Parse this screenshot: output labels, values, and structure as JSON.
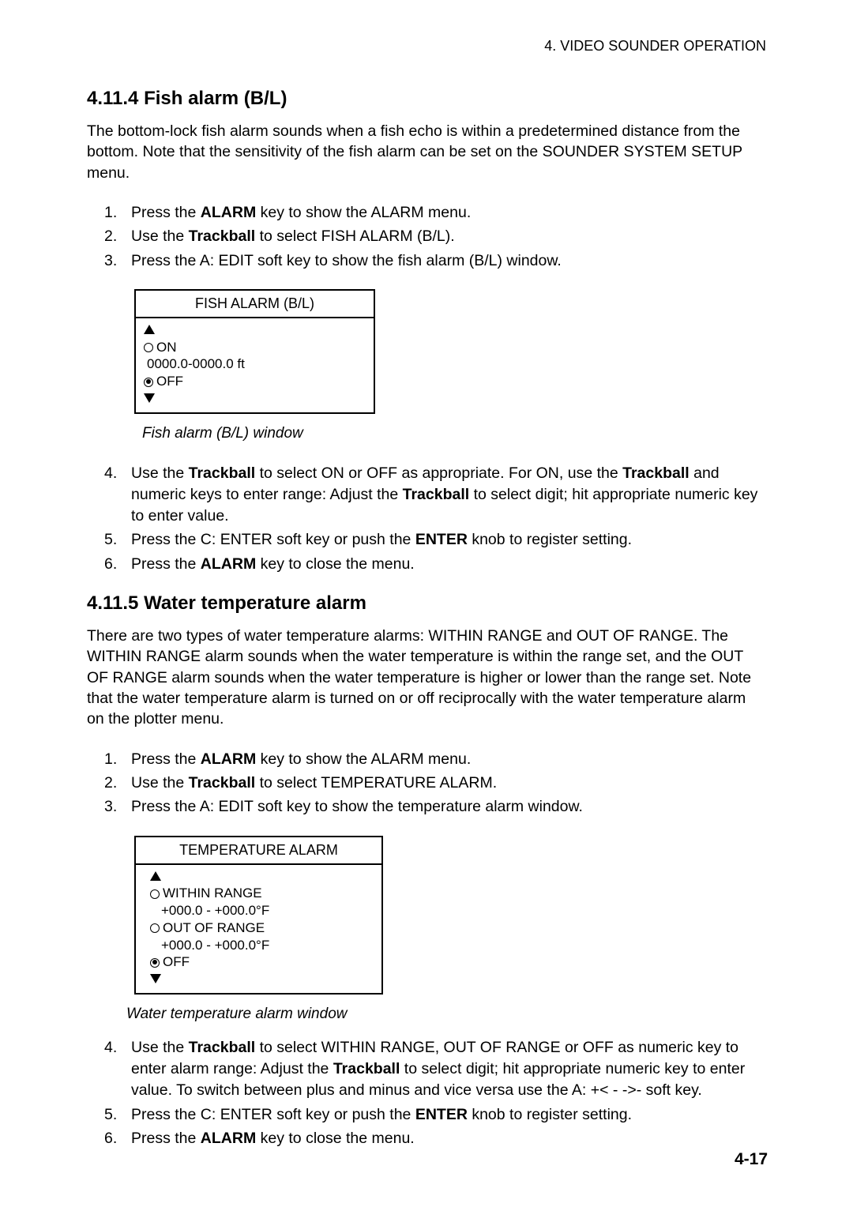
{
  "header": {
    "chapter": "4. VIDEO SOUNDER OPERATION"
  },
  "section1": {
    "title": "4.11.4  Fish alarm (B/L)",
    "intro": "The bottom-lock fish alarm sounds when a fish echo is within a predetermined distance from the bottom. Note that the sensitivity of the fish alarm can be set on the SOUNDER SYSTEM SETUP menu.",
    "steps_a": [
      {
        "n": "1.",
        "pre": "Press the ",
        "bold": "ALARM",
        "post": " key to show the ALARM menu."
      },
      {
        "n": "2.",
        "pre": "Use the ",
        "bold": "Trackball",
        "post": " to select FISH ALARM (B/L)."
      },
      {
        "n": "3.",
        "pre": "Press the A: EDIT soft key to show the fish alarm (B/L) window.",
        "bold": "",
        "post": ""
      }
    ],
    "window": {
      "title": "FISH ALARM (B/L)",
      "on": "ON",
      "range": "0000.0-0000.0 ft",
      "off": "OFF"
    },
    "caption": "Fish alarm (B/L) window",
    "steps_b": [
      {
        "n": "4.",
        "html": "Use the <span class='bold'>Trackball</span> to select ON or OFF as appropriate. For ON, use the <span class='bold'>Trackball</span> and numeric keys to enter range: Adjust the <span class='bold'>Trackball</span> to select digit; hit appropriate numeric key to enter value."
      },
      {
        "n": "5.",
        "html": "Press the C: ENTER soft key or push the <span class='bold'>ENTER</span> knob to register setting."
      },
      {
        "n": "6.",
        "html": "Press the <span class='bold'>ALARM</span> key to close the menu."
      }
    ]
  },
  "section2": {
    "title": "4.11.5  Water temperature alarm",
    "intro": "There are two types of water temperature alarms: WITHIN RANGE and OUT OF RANGE. The WITHIN RANGE alarm sounds when the water temperature is within the range set, and the OUT OF RANGE alarm sounds when the water temperature is higher or lower than the range set. Note that the water temperature alarm is turned on or off reciprocally with the water temperature alarm on the plotter menu.",
    "steps_a": [
      {
        "n": "1.",
        "pre": "Press the ",
        "bold": "ALARM",
        "post": " key to show the ALARM menu."
      },
      {
        "n": "2.",
        "pre": "Use the ",
        "bold": "Trackball",
        "post": " to select TEMPERATURE ALARM."
      },
      {
        "n": "3.",
        "pre": "Press the A: EDIT soft key to show the temperature alarm window.",
        "bold": "",
        "post": ""
      }
    ],
    "window": {
      "title": "TEMPERATURE ALARM",
      "within": "WITHIN RANGE",
      "range1": "+000.0 - +000.0°F",
      "out": "OUT OF RANGE",
      "range2": "+000.0 - +000.0°F",
      "off": "OFF"
    },
    "caption": "Water temperature alarm window",
    "steps_b": [
      {
        "n": "4.",
        "html": "Use the <span class='bold'>Trackball</span> to select WITHIN RANGE, OUT OF RANGE or OFF as numeric key to enter alarm range: Adjust the <span class='bold'>Trackball</span> to select digit; hit appropriate numeric key to enter value. To switch between plus and minus and vice versa use the A: +&lt; - -&gt;- soft key."
      },
      {
        "n": "5.",
        "html": "Press the C: ENTER soft key or push the <span class='bold'>ENTER</span> knob to register setting."
      },
      {
        "n": "6.",
        "html": "Press the <span class='bold'>ALARM</span> key to close the menu."
      }
    ]
  },
  "footer": {
    "page": "4-17"
  }
}
